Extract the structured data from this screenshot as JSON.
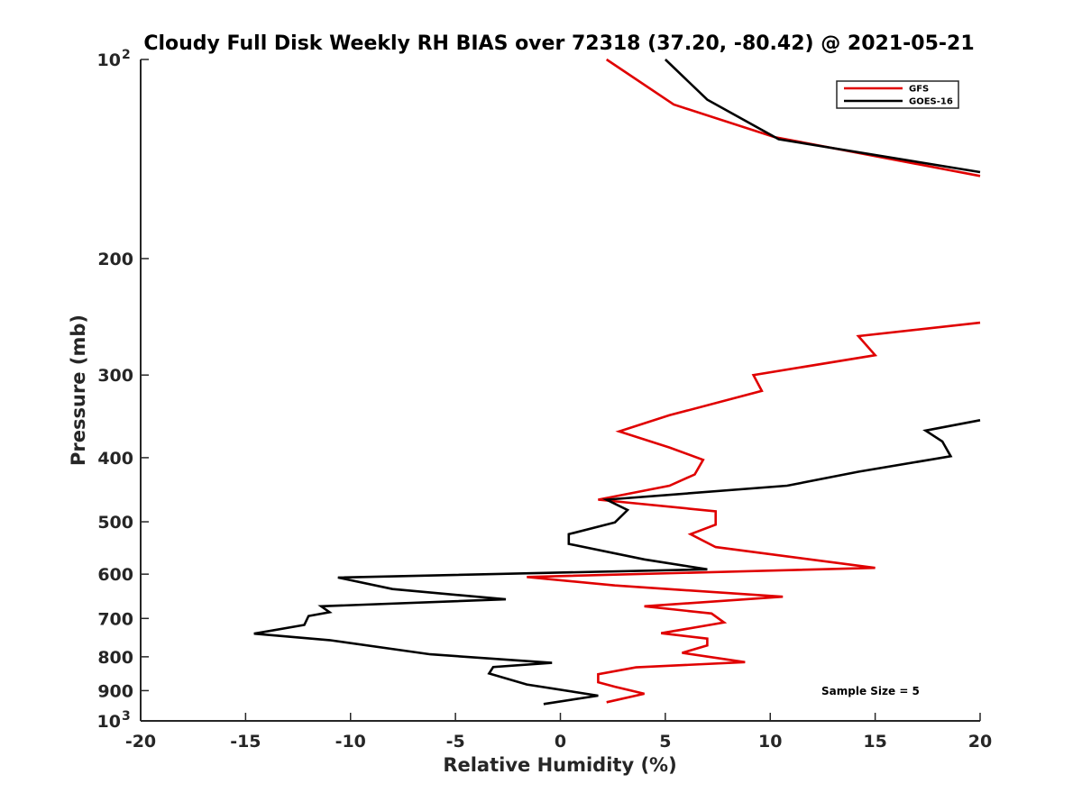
{
  "chart_data": {
    "type": "line",
    "title": "Cloudy Full Disk Weekly RH BIAS over 72318 (37.20, -80.42) @ 2021-05-21",
    "xlabel": "Relative Humidity (%)",
    "ylabel": "Pressure (mb)",
    "xlim": [
      -20,
      20
    ],
    "ylim": [
      100,
      1000
    ],
    "yscale": "log",
    "yreversed": true,
    "grid": false,
    "legend_position": "top-right",
    "annotation": "Sample Size = 5",
    "x_ticks": [
      {
        "value": -20,
        "label": "-20"
      },
      {
        "value": -15,
        "label": "-15"
      },
      {
        "value": -10,
        "label": "-10"
      },
      {
        "value": -5,
        "label": "-5"
      },
      {
        "value": 0,
        "label": "0"
      },
      {
        "value": 5,
        "label": "5"
      },
      {
        "value": 10,
        "label": "10"
      },
      {
        "value": 15,
        "label": "15"
      },
      {
        "value": 20,
        "label": "20"
      }
    ],
    "y_ticks": [
      {
        "value": 100,
        "label": "10",
        "sup": "2"
      },
      {
        "value": 200,
        "label": "200",
        "sup": ""
      },
      {
        "value": 300,
        "label": "300",
        "sup": ""
      },
      {
        "value": 400,
        "label": "400",
        "sup": ""
      },
      {
        "value": 500,
        "label": "500",
        "sup": ""
      },
      {
        "value": 600,
        "label": "600",
        "sup": ""
      },
      {
        "value": 700,
        "label": "700",
        "sup": ""
      },
      {
        "value": 800,
        "label": "800",
        "sup": ""
      },
      {
        "value": 900,
        "label": "900",
        "sup": ""
      },
      {
        "value": 1000,
        "label": "10",
        "sup": "3"
      }
    ],
    "series": [
      {
        "name": "GFS",
        "color": "#e00000",
        "points": [
          [
            2.2,
            100
          ],
          [
            5.4,
            117
          ],
          [
            10.2,
            131
          ],
          [
            20.0,
            150
          ],
          [
            null,
            null
          ],
          [
            20.0,
            250
          ],
          [
            14.2,
            262
          ],
          [
            15.0,
            280
          ],
          [
            9.2,
            300
          ],
          [
            9.6,
            317
          ],
          [
            5.2,
            345
          ],
          [
            2.8,
            365
          ],
          [
            5.2,
            386
          ],
          [
            6.8,
            403
          ],
          [
            6.4,
            424
          ],
          [
            5.2,
            441
          ],
          [
            1.8,
            463
          ],
          [
            7.4,
            482
          ],
          [
            7.4,
            505
          ],
          [
            6.2,
            522
          ],
          [
            7.4,
            546
          ],
          [
            15.0,
            587
          ],
          [
            -1.6,
            606
          ],
          [
            2.6,
            624
          ],
          [
            10.6,
            649
          ],
          [
            4.0,
            671
          ],
          [
            7.2,
            688
          ],
          [
            7.8,
            710
          ],
          [
            4.8,
            737
          ],
          [
            7.0,
            751
          ],
          [
            7.0,
            769
          ],
          [
            5.8,
            789
          ],
          [
            8.8,
            815
          ],
          [
            3.6,
            830
          ],
          [
            1.8,
            850
          ],
          [
            1.8,
            874
          ],
          [
            2.6,
            888
          ],
          [
            4.0,
            910
          ],
          [
            2.2,
            937
          ]
        ]
      },
      {
        "name": "GOES-16",
        "color": "#000000",
        "points": [
          [
            5.0,
            100
          ],
          [
            7.0,
            115
          ],
          [
            10.4,
            132
          ],
          [
            20.0,
            148
          ],
          [
            null,
            null
          ],
          [
            20.0,
            351
          ],
          [
            17.4,
            364
          ],
          [
            18.2,
            378
          ],
          [
            18.6,
            398
          ],
          [
            14.2,
            420
          ],
          [
            10.8,
            441
          ],
          [
            2.2,
            463
          ],
          [
            3.2,
            480
          ],
          [
            2.6,
            501
          ],
          [
            0.4,
            522
          ],
          [
            0.4,
            540
          ],
          [
            4.0,
            570
          ],
          [
            7.0,
            590
          ],
          [
            -10.6,
            607
          ],
          [
            -8.0,
            632
          ],
          [
            -2.6,
            655
          ],
          [
            -11.4,
            671
          ],
          [
            -11.0,
            685
          ],
          [
            -12.0,
            694
          ],
          [
            -12.2,
            716
          ],
          [
            -14.6,
            738
          ],
          [
            -11.0,
            755
          ],
          [
            -6.2,
            793
          ],
          [
            -0.4,
            817
          ],
          [
            -3.2,
            829
          ],
          [
            -3.4,
            848
          ],
          [
            -1.6,
            881
          ],
          [
            1.8,
            916
          ],
          [
            -0.8,
            943
          ]
        ]
      }
    ]
  }
}
